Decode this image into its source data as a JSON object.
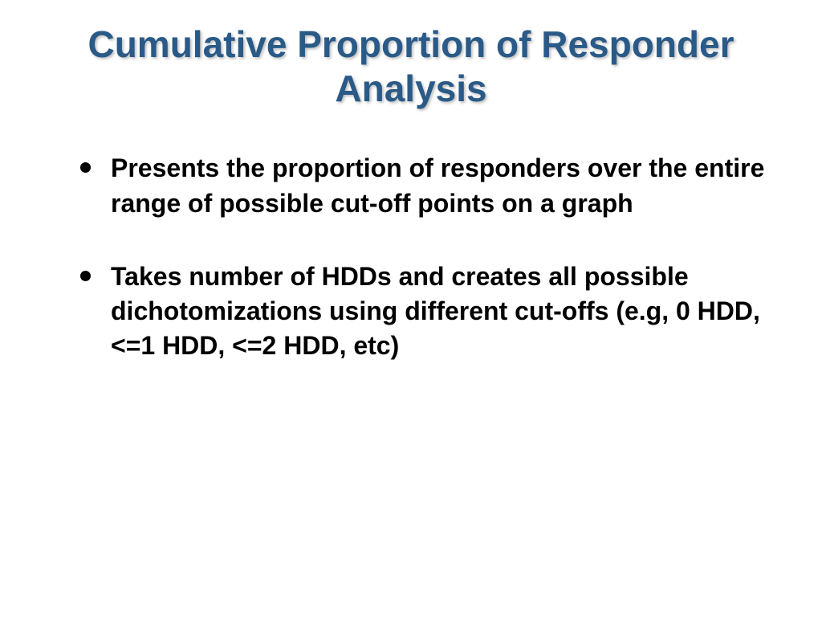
{
  "slide": {
    "title": "Cumulative Proportion of Responder Analysis",
    "title_color": "#2a5a87",
    "title_fontsize": 46,
    "bullets": [
      {
        "text": "Presents the proportion of responders over the entire range of possible cut-off points on a graph"
      },
      {
        "text": "Takes number of HDDs and creates all possible dichotomizations using different cut-offs (e.g, 0 HDD, <=1 HDD, <=2 HDD, etc)"
      }
    ],
    "body_color": "#000000",
    "body_fontsize": 32,
    "background_color": "#ffffff"
  }
}
